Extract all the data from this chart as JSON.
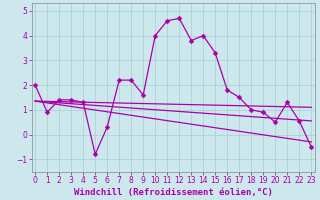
{
  "xlabel": "Windchill (Refroidissement éolien,°C)",
  "line_main": {
    "x": [
      0,
      1,
      2,
      3,
      4,
      5,
      6,
      7,
      8,
      9,
      10,
      11,
      12,
      13,
      14,
      15,
      16,
      17,
      18,
      19,
      20,
      21,
      22,
      23
    ],
    "y": [
      2.0,
      0.9,
      1.4,
      1.4,
      1.3,
      -0.8,
      0.3,
      2.2,
      2.2,
      1.6,
      4.0,
      4.6,
      4.7,
      3.8,
      4.0,
      3.3,
      1.8,
      1.5,
      1.0,
      0.9,
      0.5,
      1.3,
      0.55,
      -0.5
    ]
  },
  "line_upper": {
    "x": [
      0,
      23
    ],
    "y": [
      1.35,
      1.1
    ]
  },
  "line_mid": {
    "x": [
      0,
      23
    ],
    "y": [
      1.35,
      0.55
    ]
  },
  "line_lower": {
    "x": [
      0,
      23
    ],
    "y": [
      1.35,
      -0.3
    ]
  },
  "ylim": [
    -1.5,
    5.3
  ],
  "yticks": [
    -1,
    0,
    1,
    2,
    3,
    4,
    5
  ],
  "xlim": [
    -0.3,
    23.3
  ],
  "xticks": [
    0,
    1,
    2,
    3,
    4,
    5,
    6,
    7,
    8,
    9,
    10,
    11,
    12,
    13,
    14,
    15,
    16,
    17,
    18,
    19,
    20,
    21,
    22,
    23
  ],
  "grid_color": "#aad4d8",
  "bg_color": "#cce8ec",
  "line_color": "#aa00aa",
  "tick_fontsize": 5.5,
  "label_fontsize": 6.5,
  "linewidth": 0.9,
  "markersize": 2.5
}
